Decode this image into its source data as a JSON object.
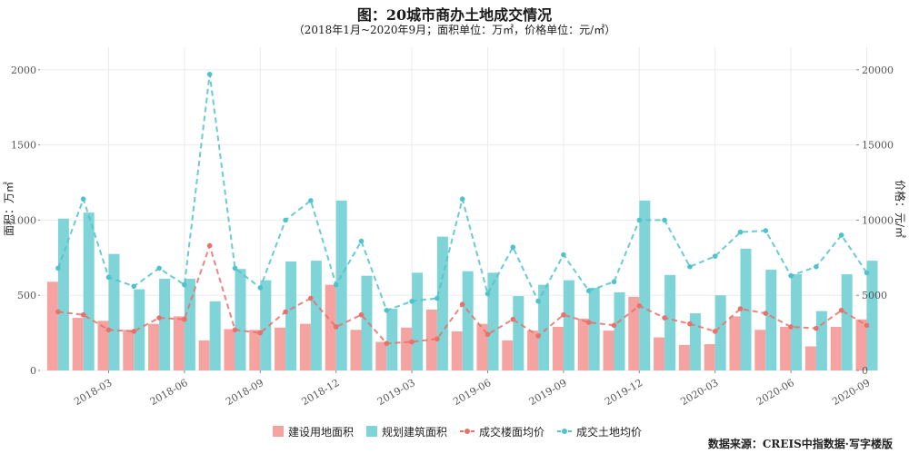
{
  "chart_data": {
    "type": "bar",
    "title": "图：20城市商办土地成交情况",
    "subtitle": "（2018年1月~2020年9月；面积单位：万㎡，价格单位：元/㎡）",
    "ylabel": "面积：万㎡",
    "y2label": "价格：元/㎡",
    "ylim": [
      0,
      2000
    ],
    "y2lim": [
      0,
      20000
    ],
    "yticks": [
      0,
      500,
      1000,
      1500,
      2000
    ],
    "y2ticks": [
      0,
      5000,
      10000,
      15000,
      20000
    ],
    "ytick_labels": [
      "0",
      "500",
      "1000",
      "1500",
      "2000"
    ],
    "y2tick_labels": [
      "0",
      "5000",
      "10000",
      "15000",
      "20000"
    ],
    "xtick_labels": [
      "2018-03",
      "2018-06",
      "2018-09",
      "2018-12",
      "2019-03",
      "2019-06",
      "2019-09",
      "2019-12",
      "2020-03",
      "2020-06",
      "2020-09"
    ],
    "xtick_index": [
      2,
      5,
      8,
      11,
      14,
      17,
      20,
      23,
      26,
      29,
      32
    ],
    "categories": [
      "2018-01",
      "2018-02",
      "2018-03",
      "2018-04",
      "2018-05",
      "2018-06",
      "2018-07",
      "2018-08",
      "2018-09",
      "2018-10",
      "2018-11",
      "2018-12",
      "2019-01",
      "2019-02",
      "2019-03",
      "2019-04",
      "2019-05",
      "2019-06",
      "2019-07",
      "2019-08",
      "2019-09",
      "2019-10",
      "2019-11",
      "2019-12",
      "2020-01",
      "2020-02",
      "2020-03",
      "2020-04",
      "2020-05",
      "2020-06",
      "2020-07",
      "2020-08",
      "2020-09"
    ],
    "series": [
      {
        "name": "建设用地面积",
        "kind": "bar",
        "axis": "left",
        "values": [
          590,
          350,
          330,
          270,
          310,
          360,
          200,
          275,
          270,
          285,
          310,
          570,
          270,
          190,
          285,
          405,
          260,
          310,
          200,
          265,
          290,
          345,
          265,
          490,
          220,
          170,
          175,
          360,
          270,
          290,
          160,
          290,
          340
        ]
      },
      {
        "name": "规划建筑面积",
        "kind": "bar",
        "axis": "left",
        "values": [
          1010,
          1050,
          775,
          540,
          610,
          610,
          460,
          675,
          600,
          725,
          730,
          1130,
          630,
          410,
          650,
          890,
          660,
          650,
          495,
          570,
          600,
          550,
          520,
          1130,
          635,
          380,
          500,
          810,
          670,
          640,
          395,
          640,
          730
        ]
      },
      {
        "name": "成交楼面均价",
        "kind": "line",
        "axis": "right",
        "values": [
          3900,
          3700,
          2700,
          2600,
          3500,
          3400,
          8300,
          2700,
          2500,
          3900,
          4800,
          2900,
          3700,
          1800,
          1900,
          2100,
          4400,
          2400,
          3400,
          2300,
          3700,
          3200,
          3000,
          4300,
          3500,
          3100,
          2600,
          4100,
          3800,
          2900,
          2800,
          4000,
          3000
        ]
      },
      {
        "name": "成交土地均价",
        "kind": "line",
        "axis": "right",
        "values": [
          6800,
          11400,
          6200,
          5600,
          6800,
          5700,
          19700,
          6800,
          5500,
          10000,
          11300,
          5700,
          8600,
          4000,
          4600,
          4800,
          11400,
          5100,
          8200,
          4600,
          7700,
          5300,
          5900,
          10000,
          10000,
          6900,
          7600,
          9200,
          9300,
          6300,
          6900,
          9000,
          6500
        ]
      }
    ],
    "grid": true,
    "legend_position": "bottom-center"
  },
  "colors": {
    "bar_land": "#F4A3A0",
    "bar_build": "#7FD4D8",
    "line_floor": "#E9706B",
    "line_land": "#4FC3CB",
    "grid": "#EBEBEB"
  },
  "legend": [
    {
      "label": "建设用地面积",
      "kind": "bar",
      "color_key": "bar_land"
    },
    {
      "label": "规划建筑面积",
      "kind": "bar",
      "color_key": "bar_build"
    },
    {
      "label": "成交楼面均价",
      "kind": "line",
      "color_key": "line_floor"
    },
    {
      "label": "成交土地均价",
      "kind": "line",
      "color_key": "line_land"
    }
  ],
  "source": "数据来源：CREIS中指数据·写字楼版"
}
